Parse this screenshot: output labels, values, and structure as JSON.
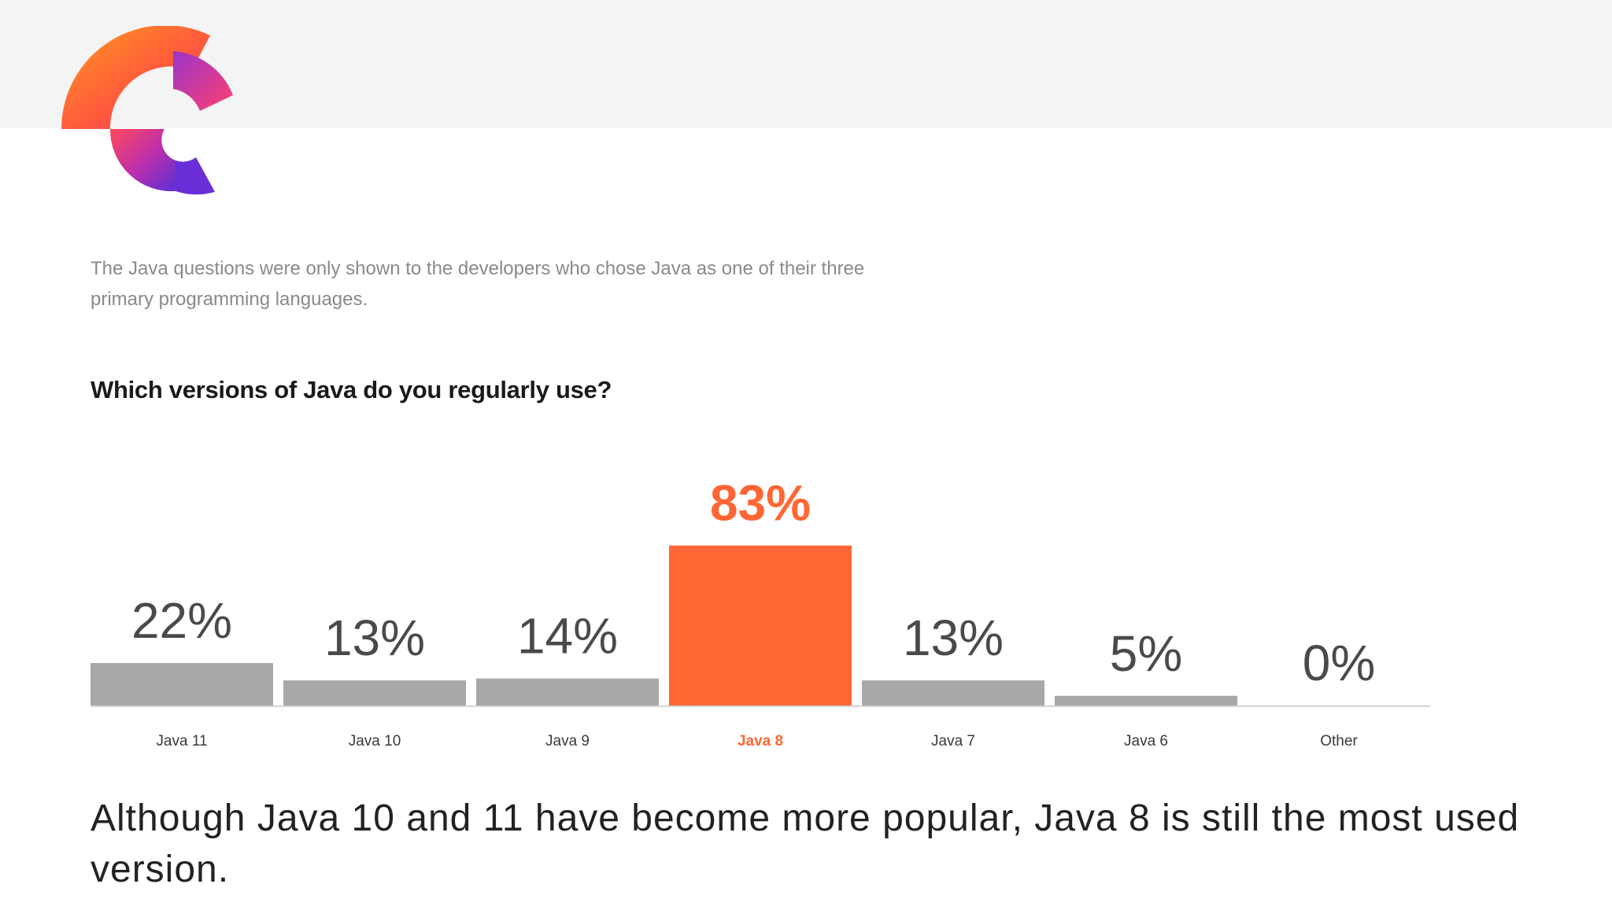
{
  "intro": "The Java questions were only shown to the developers who chose Java as one of their three primary programming languages.",
  "caption": "Although Java 10 and 11 have become more popular, Java 8 is still the most used version.",
  "colors": {
    "bar": "#a9a7a8",
    "highlight": "#ff6633",
    "value_label": "#4a4a4a",
    "category_label": "#3a3a3a",
    "axis": "#d4d4d4",
    "header_band": "#f4f4f4"
  },
  "logo_icon": "brand-c-logo-icon",
  "chart_data": {
    "type": "bar",
    "title": "Which versions of Java do you regularly use?",
    "categories": [
      "Java 11",
      "Java 10",
      "Java 9",
      "Java 8",
      "Java 7",
      "Java 6",
      "Other"
    ],
    "values": [
      22,
      13,
      14,
      83,
      13,
      5,
      0
    ],
    "value_labels": [
      "22%",
      "13%",
      "14%",
      "83%",
      "13%",
      "5%",
      "0%"
    ],
    "highlight": "Java 8",
    "xlabel": "",
    "ylabel": "",
    "ylim": [
      0,
      100
    ],
    "grid": false,
    "legend": "none"
  }
}
